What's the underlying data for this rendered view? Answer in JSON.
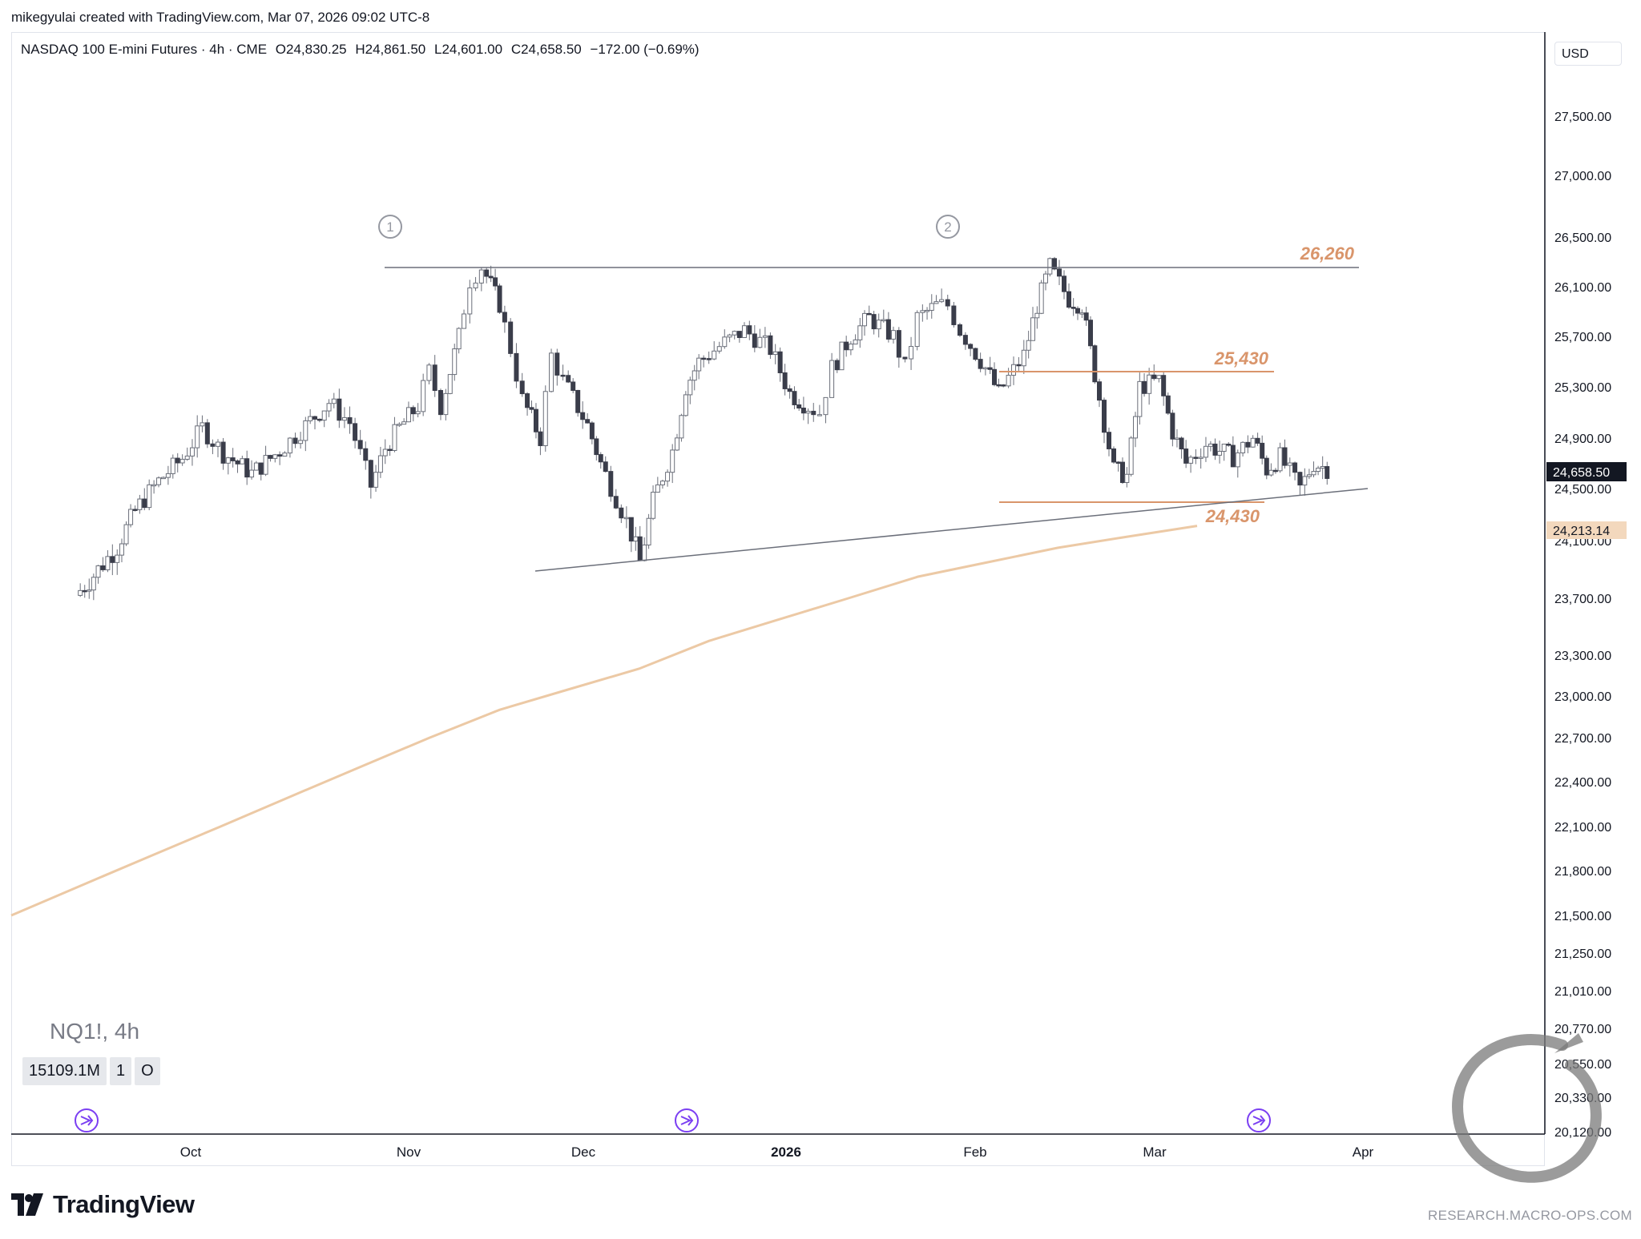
{
  "header": {
    "created_by": "mikegyulai created with TradingView.com, Mar 07, 2026 09:02 UTC-8"
  },
  "symbol": {
    "name": "NASDAQ 100 E-mini Futures · 4h · CME",
    "open": "O24,830.25",
    "high": "H24,861.50",
    "low": "L24,601.00",
    "close": "C24,658.50",
    "change": "−172.00 (−0.69%)"
  },
  "currency": "USD",
  "legend": {
    "title": "NQ1!, 4h",
    "badges": [
      "15109.1M",
      "1",
      "O"
    ]
  },
  "footer": {
    "brand": "TradingView",
    "watermark": "RESEARCH.MACRO-OPS.COM"
  },
  "colors": {
    "bull_candle": "#ffffff",
    "bear_candle": "#3a3d4a",
    "wick": "#6b6f7a",
    "annotation": "#d9956b",
    "moving_average": "#ecc9a5",
    "trendline": "#6b6f7a",
    "event_icon": "#7b3ff2"
  },
  "chart_data": {
    "type": "candlestick",
    "timeframe": "4h",
    "x_ticks": [
      "Oct",
      "Nov",
      "Dec",
      "2026",
      "Feb",
      "Mar",
      "Apr"
    ],
    "y_ticks": [
      "27,500.00",
      "27,000.00",
      "26,500.00",
      "26,100.00",
      "25,700.00",
      "25,300.00",
      "24,900.00",
      "24,500.00",
      "24,100.00",
      "23,700.00",
      "23,300.00",
      "23,000.00",
      "22,700.00",
      "22,400.00",
      "22,100.00",
      "21,800.00",
      "21,500.00",
      "21,250.00",
      "21,010.00",
      "20,770.00",
      "20,550.00",
      "20,330.00",
      "20,120.00"
    ],
    "last_price": "24,658.50",
    "ma_value": "24,213.14",
    "price_path": [
      [
        "Sep 12",
        23720
      ],
      [
        "Sep 15",
        23860
      ],
      [
        "Sep 19",
        24060
      ],
      [
        "Sep 22",
        24330
      ],
      [
        "Sep 26",
        24560
      ],
      [
        "Sep 30",
        24740
      ],
      [
        "Oct 3",
        24980
      ],
      [
        "Oct 6",
        24780
      ],
      [
        "Oct 10",
        24620
      ],
      [
        "Oct 14",
        24800
      ],
      [
        "Oct 17",
        24960
      ],
      [
        "Oct 21",
        25180
      ],
      [
        "Oct 24",
        25020
      ],
      [
        "Oct 27",
        24520
      ],
      [
        "Oct 29",
        24820
      ],
      [
        "Oct 31",
        24980
      ],
      [
        "Nov 3",
        25150
      ],
      [
        "Nov 5",
        25420
      ],
      [
        "Nov 7",
        25150
      ],
      [
        "Nov 10",
        25700
      ],
      [
        "Nov 12",
        26150
      ],
      [
        "Nov 14",
        26260
      ],
      [
        "Nov 17",
        25960
      ],
      [
        "Nov 19",
        25600
      ],
      [
        "Nov 21",
        25200
      ],
      [
        "Nov 24",
        24900
      ],
      [
        "Nov 26",
        25550
      ],
      [
        "Nov 28",
        25350
      ],
      [
        "Dec 2",
        25000
      ],
      [
        "Dec 4",
        24700
      ],
      [
        "Dec 8",
        24250
      ],
      [
        "Dec 10",
        23950
      ],
      [
        "Dec 12",
        24400
      ],
      [
        "Dec 15",
        24800
      ],
      [
        "Dec 17",
        25300
      ],
      [
        "Dec 19",
        25500
      ],
      [
        "Dec 23",
        25650
      ],
      [
        "Dec 26",
        25750
      ],
      [
        "Dec 30",
        25600
      ],
      [
        "Jan 2",
        25250
      ],
      [
        "Jan 5",
        25150
      ],
      [
        "Jan 7",
        25100
      ],
      [
        "Jan 9",
        25450
      ],
      [
        "Jan 12",
        25700
      ],
      [
        "Jan 15",
        25850
      ],
      [
        "Jan 19",
        25700
      ],
      [
        "Jan 21",
        25450
      ],
      [
        "Jan 23",
        25850
      ],
      [
        "Jan 26",
        25950
      ],
      [
        "Jan 28",
        25950
      ],
      [
        "Jan 30",
        25750
      ],
      [
        "Feb 3",
        25450
      ],
      [
        "Feb 5",
        25250
      ],
      [
        "Feb 9",
        25550
      ],
      [
        "Feb 11",
        25950
      ],
      [
        "Feb 13",
        26260
      ],
      [
        "Feb 16",
        26000
      ],
      [
        "Feb 18",
        25950
      ],
      [
        "Feb 20",
        25400
      ],
      [
        "Feb 23",
        24650
      ],
      [
        "Feb 25",
        24600
      ],
      [
        "Feb 27",
        25300
      ],
      [
        "Mar 2",
        25350
      ],
      [
        "Mar 4",
        24950
      ],
      [
        "Mar 6",
        24700
      ],
      [
        "Mar 9",
        24850
      ],
      [
        "Mar 11",
        24800
      ],
      [
        "Mar 13",
        24750
      ],
      [
        "Mar 16",
        24900
      ],
      [
        "Mar 18",
        24650
      ],
      [
        "Mar 20",
        24750
      ],
      [
        "Mar 23",
        24500
      ],
      [
        "Mar 25",
        24700
      ],
      [
        "Mar 27",
        24658.5
      ]
    ],
    "moving_average_path": [
      21500,
      21700,
      21900,
      22100,
      22300,
      22500,
      22700,
      22900,
      23050,
      23200,
      23400,
      23550,
      23700,
      23850,
      23950,
      24050,
      24130,
      24213.14
    ],
    "levels": [
      {
        "label": "26,260",
        "value": 26260
      },
      {
        "label": "25,430",
        "value": 25430
      },
      {
        "label": "24,430",
        "value": 24430
      }
    ],
    "wave_labels": [
      "1",
      "2"
    ]
  }
}
